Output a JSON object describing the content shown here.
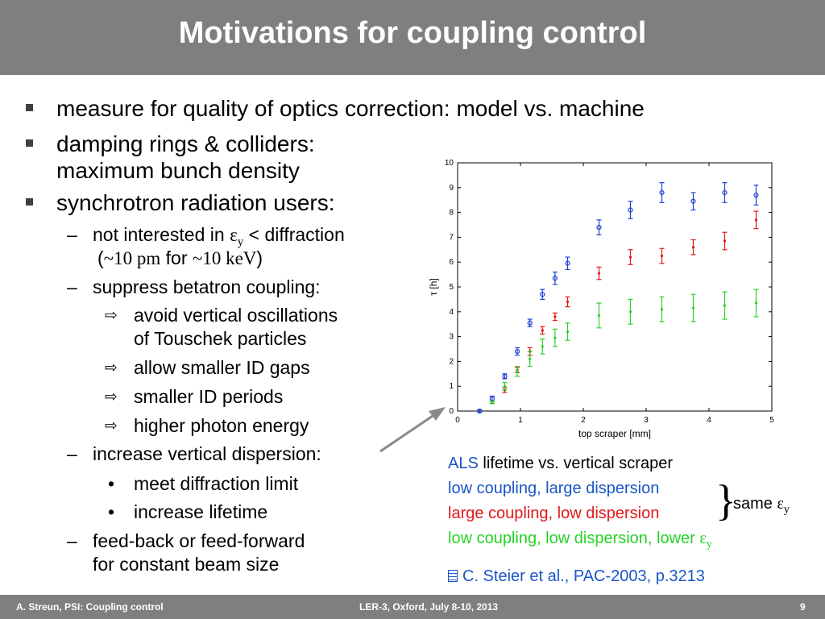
{
  "title": "Motivations for coupling control",
  "bullets": {
    "b1": "measure for quality of optics correction: model vs. machine",
    "b2_line1": "damping rings & colliders:",
    "b2_line2": "maximum bunch density",
    "b3": "synchrotron radiation users:",
    "sub1_a": "not interested in ",
    "sub1_eps": "ε",
    "sub1_y": "y",
    "sub1_b": " < diffraction",
    "sub1_c_open": "(",
    "sub1_c_val1": "~10 pm",
    "sub1_c_for": " for ",
    "sub1_c_val2": "~10 keV",
    "sub1_c_close": ")",
    "sub2": "suppress betatron coupling:",
    "sub2_items": [
      "avoid vertical oscillations",
      "of Touschek particles",
      "allow smaller ID gaps",
      "smaller ID periods",
      "higher photon energy"
    ],
    "sub3": "increase vertical dispersion:",
    "sub3_items": [
      "meet diffraction limit",
      "increase lifetime"
    ],
    "sub4_line1": "feed-back or feed-forward",
    "sub4_line2": "for constant beam size"
  },
  "caption": {
    "line1_a": "ALS",
    "line1_b": " lifetime vs. vertical scraper",
    "line2": "low coupling, large dispersion",
    "line3": "large coupling, low dispersion",
    "same": "same ",
    "eps": "ε",
    "y": "y",
    "line4": "low coupling, low dispersion, lower ",
    "ref": "C. Steier et al., PAC-2003, p.3213"
  },
  "colors": {
    "blue": "#1f3fd6",
    "red": "#e01818",
    "green": "#28d228",
    "caption_blue": "#1a56c8",
    "header": "#7f7f7f"
  },
  "icons": {
    "bullet": "square-bullet-icon",
    "arrow": "outline-arrow-icon",
    "ref": "book-icon"
  },
  "footer": {
    "left": "A. Streun, PSI: Coupling control",
    "center": "LER-3, Oxford, July 8-10, 2013",
    "right": "9"
  },
  "chart_data": {
    "type": "scatter",
    "xlabel": "top scraper [mm]",
    "ylabel": "τ [h]",
    "xlim": [
      0,
      5
    ],
    "ylim": [
      0,
      10
    ],
    "xticks": [
      "0",
      "1",
      "2",
      "3",
      "4",
      "5"
    ],
    "yticks": [
      "0",
      "1",
      "2",
      "3",
      "4",
      "5",
      "6",
      "7",
      "8",
      "9",
      "10"
    ],
    "grid": false,
    "series": [
      {
        "marker": "circle",
        "color": "#1f3fd6",
        "x": [
          0.35,
          0.55,
          0.75,
          0.95,
          1.15,
          1.35,
          1.55,
          1.75,
          2.25,
          2.75,
          3.25,
          3.75,
          4.25,
          4.75
        ],
        "y": [
          0.0,
          0.5,
          1.4,
          2.4,
          3.55,
          4.7,
          5.35,
          5.95,
          7.4,
          8.1,
          8.8,
          8.45,
          8.8,
          8.7
        ],
        "err": [
          0.05,
          0.1,
          0.1,
          0.15,
          0.15,
          0.2,
          0.25,
          0.25,
          0.3,
          0.35,
          0.4,
          0.35,
          0.4,
          0.4
        ]
      },
      {
        "marker": "dot",
        "color": "#e01818",
        "x": [
          0.55,
          0.75,
          0.95,
          1.15,
          1.35,
          1.55,
          1.75,
          2.25,
          2.75,
          3.25,
          3.75,
          4.25,
          4.75
        ],
        "y": [
          0.35,
          0.85,
          1.65,
          2.4,
          3.25,
          3.8,
          4.4,
          5.55,
          6.2,
          6.25,
          6.6,
          6.85,
          7.7
        ],
        "err": [
          0.05,
          0.1,
          0.1,
          0.15,
          0.15,
          0.15,
          0.2,
          0.25,
          0.3,
          0.3,
          0.3,
          0.35,
          0.35
        ]
      },
      {
        "marker": "dot",
        "color": "#28d228",
        "x": [
          0.55,
          0.75,
          0.95,
          1.15,
          1.35,
          1.55,
          1.75,
          2.25,
          2.75,
          3.25,
          3.75,
          4.25,
          4.75
        ],
        "y": [
          0.35,
          1.0,
          1.6,
          2.1,
          2.6,
          2.95,
          3.2,
          3.85,
          4.0,
          4.1,
          4.15,
          4.25,
          4.35
        ],
        "err": [
          0.05,
          0.15,
          0.2,
          0.3,
          0.3,
          0.35,
          0.35,
          0.5,
          0.5,
          0.5,
          0.55,
          0.55,
          0.55
        ]
      }
    ]
  }
}
